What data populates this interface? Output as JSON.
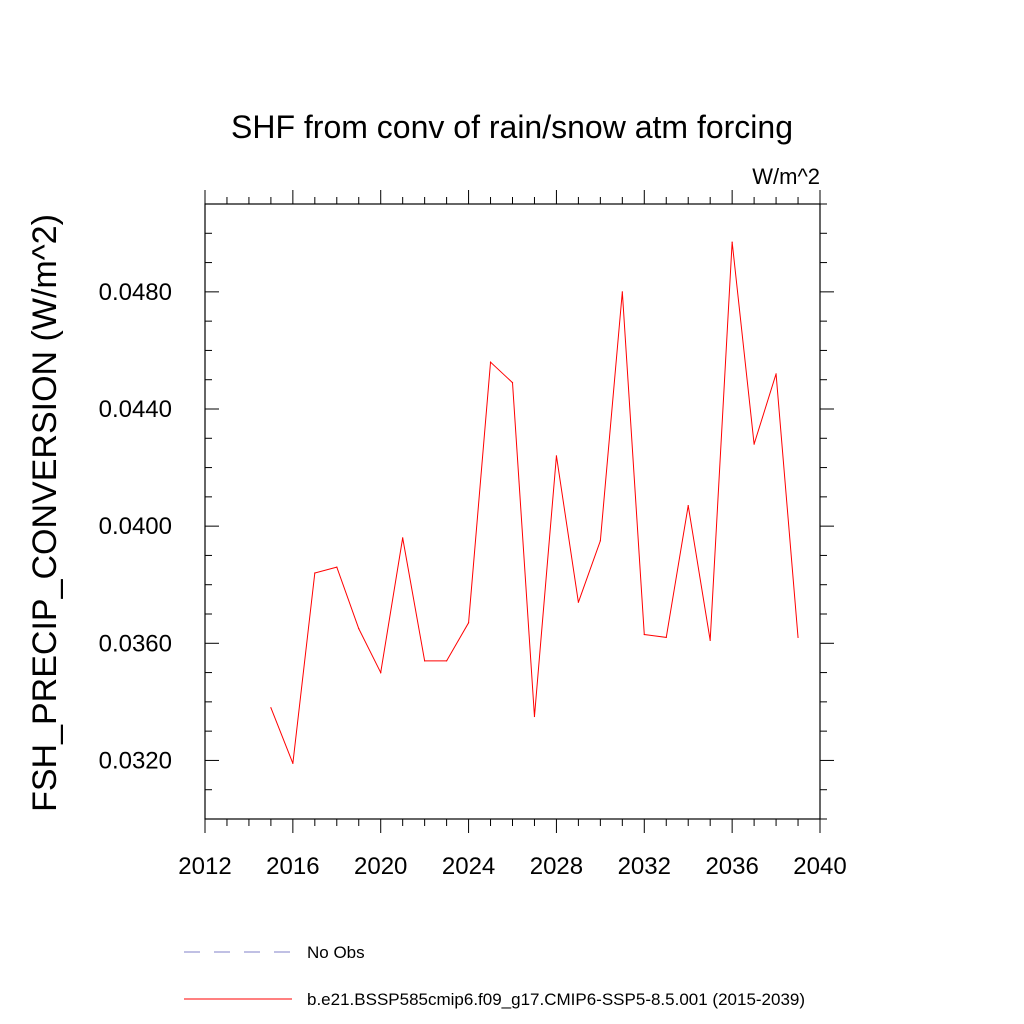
{
  "chart_data": {
    "type": "line",
    "title": "SHF from conv of rain/snow atm forcing",
    "units": "W/m^2",
    "xlabel": "",
    "ylabel": "FSH_PRECIP_CONVERSION  (W/m^2)",
    "xlim": [
      2012,
      2040
    ],
    "ylim": [
      0.03,
      0.051
    ],
    "x_ticks": [
      2012,
      2016,
      2020,
      2024,
      2028,
      2032,
      2036,
      2040
    ],
    "x_tick_labels": [
      "2012",
      "2016",
      "2020",
      "2024",
      "2028",
      "2032",
      "2036",
      "2040"
    ],
    "y_ticks": [
      0.032,
      0.036,
      0.04,
      0.044,
      0.048
    ],
    "y_tick_labels": [
      "0.0320",
      "0.0360",
      "0.0400",
      "0.0440",
      "0.0480"
    ],
    "grid": false,
    "legend_position": "bottom",
    "series": [
      {
        "name": "b.e21.BSSP585cmip6.f09_g17.CMIP6-SSP5-8.5.001 (2015-2039)",
        "color": "#ff0000",
        "style": "solid",
        "x": [
          2015,
          2016,
          2017,
          2018,
          2019,
          2020,
          2021,
          2022,
          2023,
          2024,
          2025,
          2026,
          2027,
          2028,
          2029,
          2030,
          2031,
          2032,
          2033,
          2034,
          2035,
          2036,
          2037,
          2038,
          2039
        ],
        "values": [
          0.0338,
          0.0319,
          0.0384,
          0.0386,
          0.0365,
          0.035,
          0.0396,
          0.0354,
          0.0354,
          0.0367,
          0.0456,
          0.0449,
          0.0335,
          0.0424,
          0.0374,
          0.0395,
          0.048,
          0.0363,
          0.0362,
          0.0407,
          0.0361,
          0.0497,
          0.0428,
          0.0452,
          0.0362
        ]
      },
      {
        "name": "No Obs",
        "color": "#8080c8",
        "style": "dashed",
        "x": [],
        "values": []
      }
    ],
    "legend": [
      {
        "label": "No Obs",
        "color": "#8080c8",
        "style": "dashed"
      },
      {
        "label": "b.e21.BSSP585cmip6.f09_g17.CMIP6-SSP5-8.5.001 (2015-2039)",
        "color": "#ff0000",
        "style": "solid"
      }
    ]
  }
}
